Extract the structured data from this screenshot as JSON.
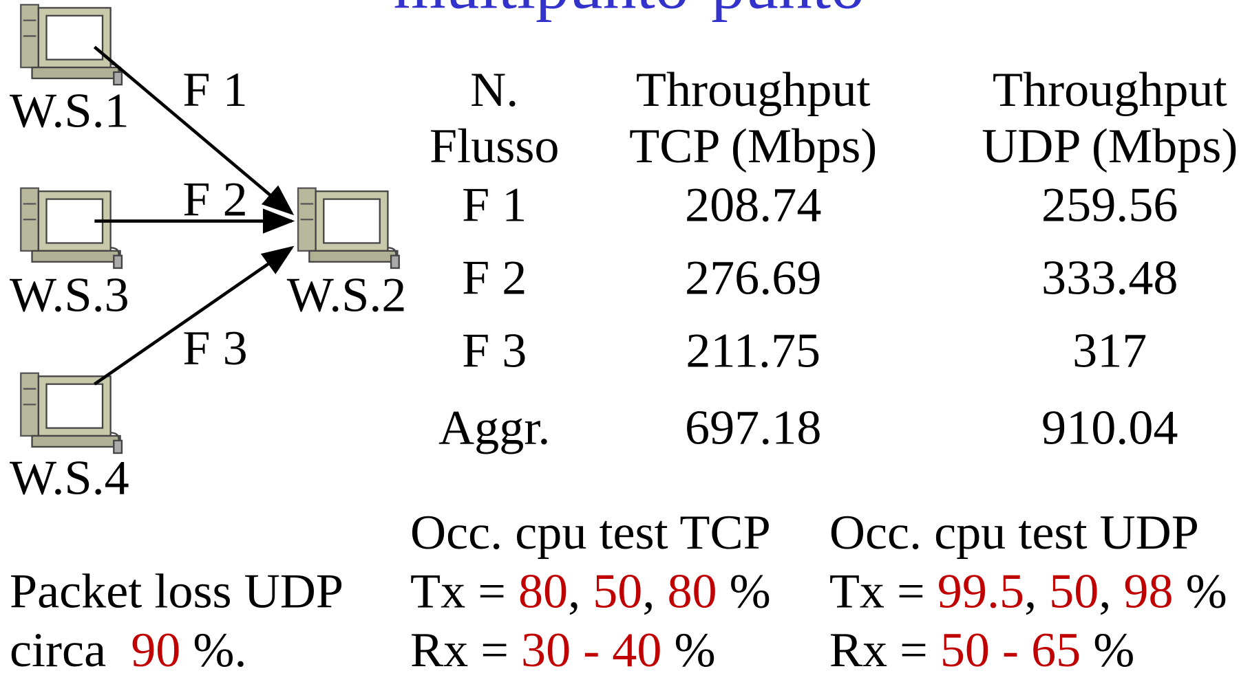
{
  "title": "multipunto-punto",
  "nodes": [
    {
      "label": "W.S.1"
    },
    {
      "label": "W.S.3"
    },
    {
      "label": "W.S.4"
    },
    {
      "label": "W.S.2"
    }
  ],
  "flows": [
    {
      "label": "F 1"
    },
    {
      "label": "F 2"
    },
    {
      "label": "F 3"
    }
  ],
  "table": {
    "header": [
      [
        "N.",
        "Flusso"
      ],
      [
        "Throughput",
        "TCP (Mbps)"
      ],
      [
        "Throughput",
        "UDP (Mbps)"
      ]
    ],
    "rows": [
      [
        "F 1",
        "208.74",
        "259.56"
      ],
      [
        "F 2",
        "276.69",
        "333.48"
      ],
      [
        "F 3",
        "211.75",
        "317"
      ],
      [
        "Aggr.",
        "697.18",
        "910.04"
      ]
    ]
  },
  "cpu": [
    {
      "title": "Occ. cpu test TCP",
      "tx": [
        "Tx = ",
        "80",
        ", ",
        "50",
        ", ",
        "80",
        " %"
      ],
      "rx": [
        "Rx = ",
        "30 - 40",
        " %"
      ]
    },
    {
      "title": "Occ. cpu test UDP",
      "tx": [
        "Tx = ",
        "99.5",
        ", ",
        "50",
        ", ",
        "98",
        " %"
      ],
      "rx": [
        "Rx = ",
        "50 - 65",
        " %"
      ]
    }
  ],
  "packet_loss": {
    "line1": "Packet loss UDP",
    "line2": [
      "circa  ",
      "90",
      " %."
    ]
  }
}
